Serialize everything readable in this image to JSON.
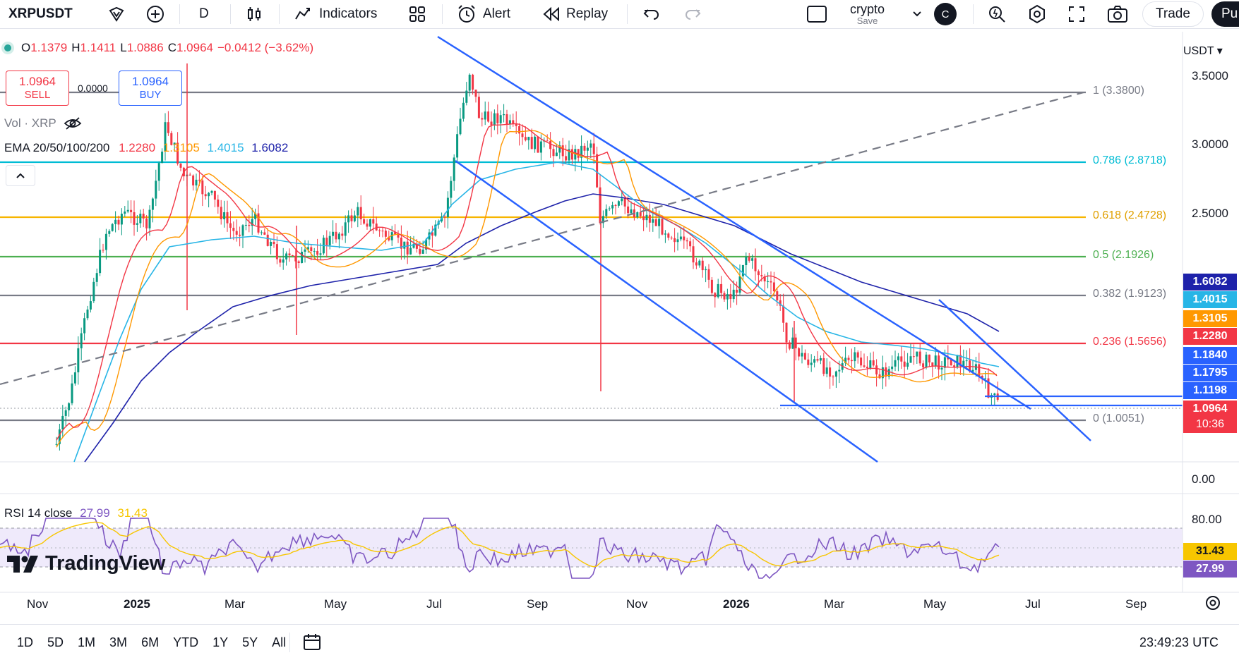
{
  "toolbar": {
    "symbol": "XRPUSDT",
    "interval": "D",
    "indicators": "Indicators",
    "alert": "Alert",
    "replay": "Replay",
    "layout_name": "crypto",
    "layout_save": "Save",
    "avatar_initial": "C",
    "trade": "Trade",
    "publish_partial": "Pu"
  },
  "ohlc": {
    "o_label": "O",
    "o": "1.1379",
    "h_label": "H",
    "h": "1.1411",
    "l_label": "L",
    "l": "1.0886",
    "c_label": "C",
    "c": "1.0964",
    "change": "−0.0412 (−3.62%)"
  },
  "trade_panel": {
    "sell_price": "1.0964",
    "sell_label": "SELL",
    "spread": "0.0000",
    "buy_price": "1.0964",
    "buy_label": "BUY"
  },
  "vol_legend": "Vol · XRP",
  "ema_legend": {
    "label": "EMA 20/50/100/200",
    "v20": "1.2280",
    "v50": "1.3105",
    "v100": "1.4015",
    "v200": "1.6082"
  },
  "currency": "USDT",
  "price_axis": [
    "3.5000",
    "3.0000",
    "2.5000",
    "0.00",
    "80.00"
  ],
  "price_tags": [
    {
      "value": "1.6082",
      "color": "#1e22aa"
    },
    {
      "value": "1.4015",
      "color": "#27b5e6"
    },
    {
      "value": "1.3105",
      "color": "#ff9800"
    },
    {
      "value": "1.2280",
      "color": "#f23645"
    },
    {
      "value": "1.1840",
      "color": "#2962ff"
    },
    {
      "value": "1.1795",
      "color": "#2962ff"
    },
    {
      "value": "1.1198",
      "color": "#2962ff"
    },
    {
      "value": "1.0964",
      "color": "#f23645"
    }
  ],
  "countdown": "10:36",
  "fib_levels": [
    {
      "label": "1 (3.3800)",
      "color": "#787b86"
    },
    {
      "label": "0.786 (2.8718)",
      "color": "#00bcd4"
    },
    {
      "label": "0.618 (2.4728)",
      "color": "#f7b500"
    },
    {
      "label": "0.5 (2.1926)",
      "color": "#4caf50"
    },
    {
      "label": "0.382 (1.9123)",
      "color": "#787b86"
    },
    {
      "label": "0.236 (1.5656)",
      "color": "#f23645"
    },
    {
      "label": "0 (1.0051)",
      "color": "#787b86"
    }
  ],
  "rsi": {
    "label": "RSI 14 close",
    "value": "27.99",
    "ma": "31.43"
  },
  "rsi_tags": [
    {
      "value": "31.43",
      "color": "#f7c600"
    },
    {
      "value": "27.99",
      "color": "#7e57c2"
    }
  ],
  "x_axis": [
    "Nov",
    "2025",
    "Mar",
    "May",
    "Jul",
    "Sep",
    "Nov",
    "2026",
    "Mar",
    "May",
    "Jul",
    "Sep"
  ],
  "ranges": [
    "1D",
    "5D",
    "1M",
    "3M",
    "6M",
    "YTD",
    "1Y",
    "5Y",
    "All"
  ],
  "clock": "23:49:23 UTC",
  "brand": "TradingView",
  "colors": {
    "ema20": "#f23645",
    "ema50": "#ff9800",
    "ema100": "#27b5e6",
    "ema200": "#1e22aa",
    "channel": "#2962ff",
    "rsi": "#7e57c2",
    "rsi_ma": "#f7c600"
  }
}
